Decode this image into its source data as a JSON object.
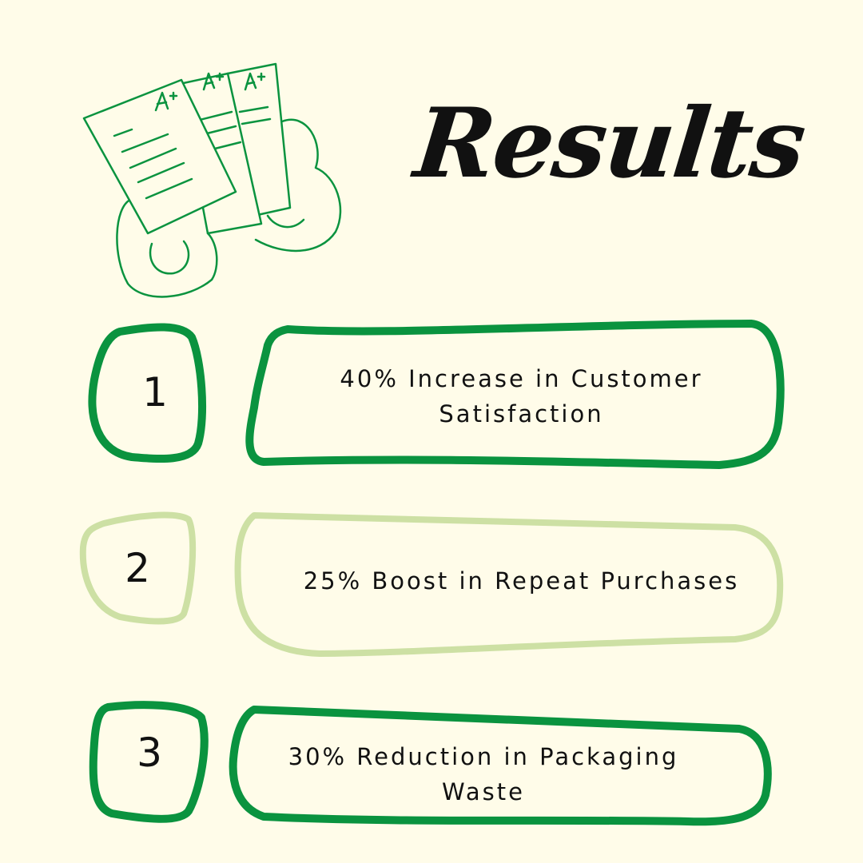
{
  "title": "Results",
  "colors": {
    "dark_green": "#0a933f",
    "light_green": "#cde0a4",
    "background": "#fffce9"
  },
  "illustration": {
    "icon": "graded-papers-icon",
    "grade_marks": [
      "A+",
      "A+",
      "A+"
    ]
  },
  "items": [
    {
      "number": "1",
      "text": "40% Increase in Customer Satisfaction",
      "color": "dark_green"
    },
    {
      "number": "2",
      "text": "25% Boost in Repeat Purchases",
      "color": "light_green"
    },
    {
      "number": "3",
      "text": "30% Reduction in Packaging Waste",
      "color": "dark_green"
    }
  ]
}
